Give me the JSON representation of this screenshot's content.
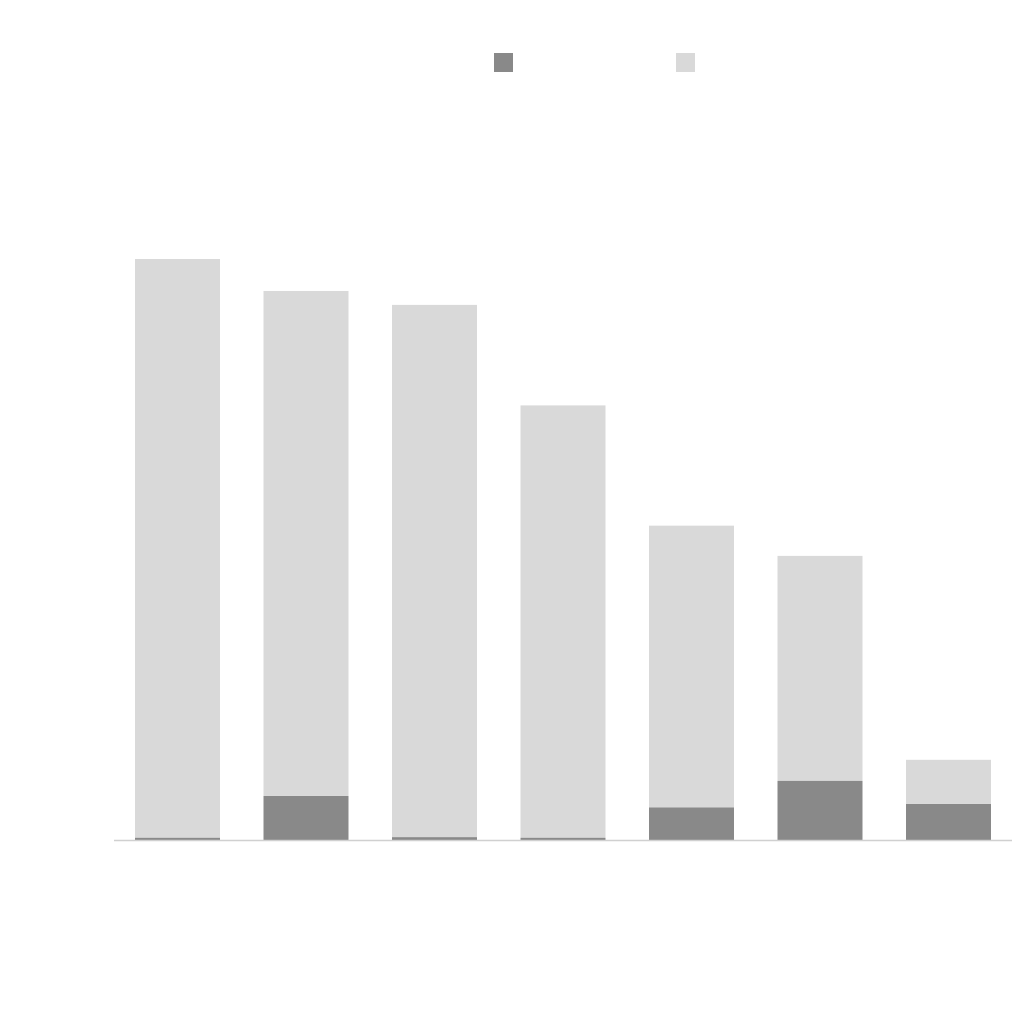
{
  "chart_data": {
    "type": "bar",
    "stacked": true,
    "title": "",
    "xlabel": "",
    "ylabel": "",
    "categories": [
      "",
      "",
      "",
      "",
      "",
      "",
      ""
    ],
    "ylim": [
      0,
      100
    ],
    "grid": false,
    "legend": {
      "placement": "top-center"
    },
    "series": [
      {
        "color": "#898989",
        "values": [
          0.4,
          7.6,
          0.5,
          0.4,
          5.6,
          10.2,
          6.2
        ]
      },
      {
        "color": "#d9d9d9",
        "values": [
          99.6,
          86.9,
          91.6,
          74.4,
          48.5,
          38.7,
          7.6
        ]
      }
    ]
  }
}
